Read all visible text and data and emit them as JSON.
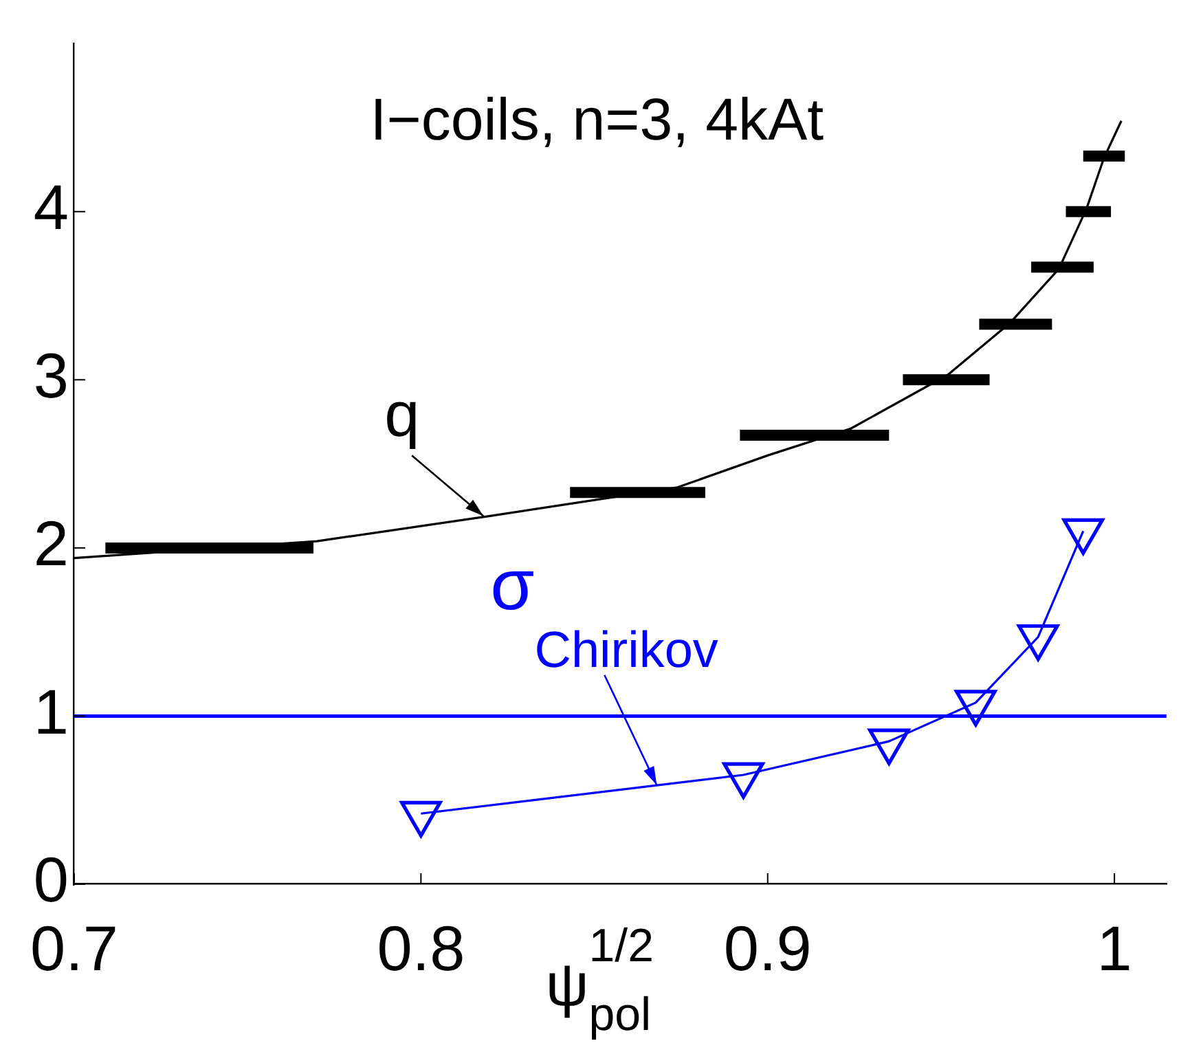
{
  "chart_data": {
    "type": "line",
    "xlabel": "ψ$^{1/2}$$_{pol}$",
    "xlim": [
      0.7,
      1.015
    ],
    "xticks": [
      0.7,
      0.8,
      0.9,
      1
    ],
    "ylim": [
      0,
      5
    ],
    "yticks": [
      0,
      1,
      2,
      3,
      4
    ],
    "series": [
      {
        "color": "#000000",
        "marker": "none",
        "x": [
          0.7,
          0.77,
          0.82,
          0.874,
          0.9,
          0.924,
          0.952,
          0.97,
          0.984,
          0.992,
          0.997,
          1.002
        ],
        "values": [
          1.94,
          2.04,
          2.19,
          2.36,
          2.55,
          2.71,
          3.03,
          3.34,
          3.66,
          4.02,
          4.32,
          4.54
        ]
      },
      {
        "color": "#0000ff",
        "marker": "triangle",
        "x": [
          0.8,
          0.893,
          0.935,
          0.96,
          0.978,
          0.991
        ],
        "values": [
          0.42,
          0.65,
          0.85,
          1.08,
          1.47,
          2.1
        ]
      },
      {
        "color": "#000000",
        "marker": "none",
        "x": [
          0.709,
          0.769
        ],
        "values": [
          2,
          2
        ]
      },
      {
        "color": "#000000",
        "marker": "none",
        "x": [
          0.843,
          0.882
        ],
        "values": [
          2.33,
          2.33
        ]
      },
      {
        "color": "#000000",
        "marker": "none",
        "x": [
          0.892,
          0.935
        ],
        "values": [
          2.67,
          2.67
        ]
      },
      {
        "color": "#000000",
        "marker": "none",
        "x": [
          0.939,
          0.964
        ],
        "values": [
          3,
          3
        ]
      },
      {
        "color": "#000000",
        "marker": "none",
        "x": [
          0.961,
          0.982
        ],
        "values": [
          3.33,
          3.33
        ]
      },
      {
        "color": "#000000",
        "marker": "none",
        "x": [
          0.976,
          0.994
        ],
        "values": [
          3.67,
          3.67
        ]
      },
      {
        "color": "#000000",
        "marker": "none",
        "x": [
          0.986,
          0.999
        ],
        "values": [
          4,
          4
        ]
      },
      {
        "color": "#000000",
        "marker": "none",
        "x": [
          0.991,
          1.003
        ],
        "values": [
          4.33,
          4.33
        ]
      }
    ],
    "ref_lines": [
      {
        "axis": "y",
        "value": 1,
        "color": "#0000ff"
      }
    ],
    "annotations": [
      "I−coils, n=3, 4kAt",
      {
        "text": "q",
        "x": 0.818,
        "y": 2.19
      },
      {
        "text": "σ$_{Chirikov}$",
        "x": 0.868,
        "y": 0.59
      }
    ]
  }
}
